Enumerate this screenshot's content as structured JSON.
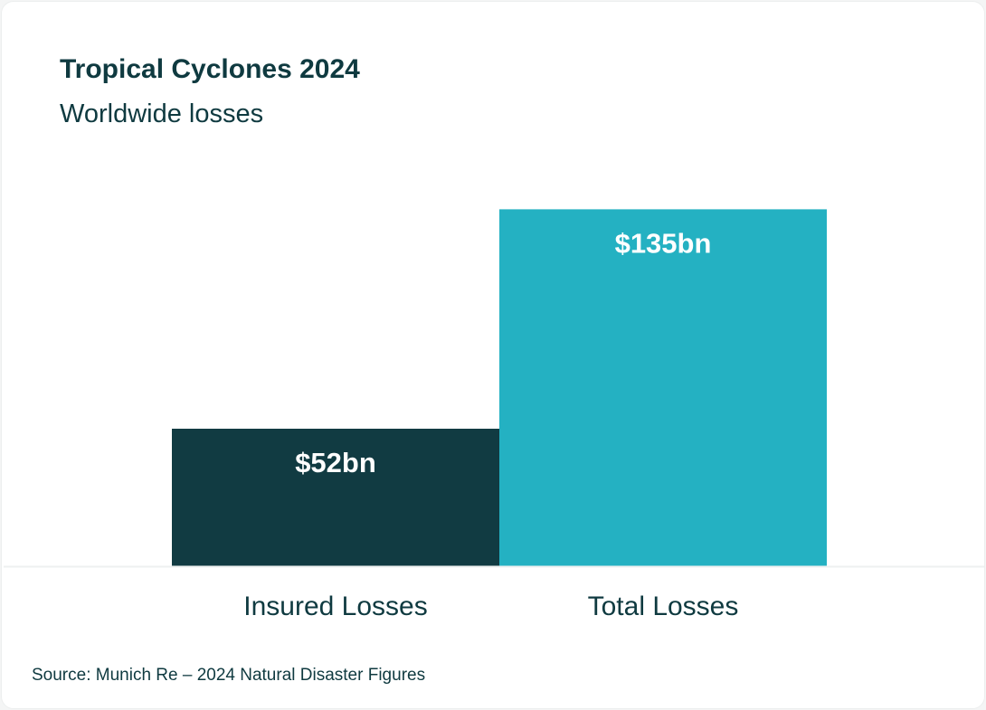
{
  "chart_data": {
    "type": "bar",
    "title": "Tropical Cyclones 2024",
    "subtitle": "Worldwide losses",
    "categories": [
      "Insured Losses",
      "Total Losses"
    ],
    "values": [
      52,
      135
    ],
    "data_labels": [
      "$52bn",
      "$135bn"
    ],
    "unit": "US$ bn",
    "colors": [
      "#113b42",
      "#24b1c2"
    ],
    "ylim": [
      0,
      135
    ],
    "grid": false,
    "legend": "none"
  },
  "footer": {
    "source": "Source: Munich Re – 2024 Natural Disaster Figures"
  }
}
